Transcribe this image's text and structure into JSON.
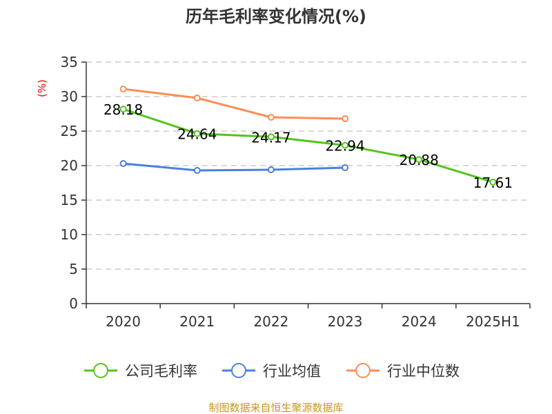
{
  "chart_data": {
    "type": "line",
    "title": "历年毛利率变化情况(%)",
    "ylabel": "(%)",
    "xlabel": "",
    "categories": [
      "2020",
      "2021",
      "2022",
      "2023",
      "2024",
      "2025H1"
    ],
    "ylim": [
      0,
      35
    ],
    "yticks": [
      0,
      5,
      10,
      15,
      20,
      25,
      30,
      35
    ],
    "grid": true,
    "legend_position": "bottom",
    "series": [
      {
        "name": "公司毛利率",
        "color": "#52c41a",
        "values": [
          28.18,
          24.64,
          24.17,
          22.94,
          20.88,
          17.61
        ],
        "labels": [
          "28.18",
          "24.64",
          "24.17",
          "22.94",
          "20.88",
          "17.61"
        ]
      },
      {
        "name": "行业均值",
        "color": "#4a7fe0",
        "values": [
          20.3,
          19.3,
          19.4,
          19.7,
          null,
          null
        ]
      },
      {
        "name": "行业中位数",
        "color": "#ff8c55",
        "values": [
          31.1,
          29.8,
          27.0,
          26.8,
          null,
          null
        ]
      }
    ]
  },
  "source": "制图数据来自恒生聚源数据库"
}
